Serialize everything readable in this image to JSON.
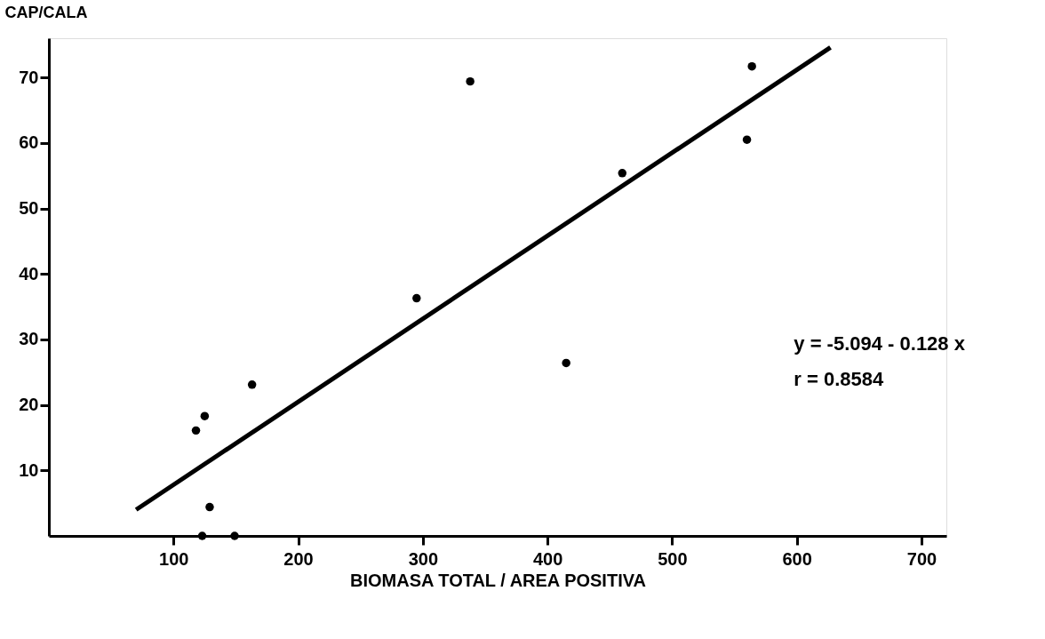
{
  "chart_data": {
    "type": "scatter",
    "xlabel": "BIOMASA TOTAL / AREA POSITIVA",
    "ylabel": "CAP/CALA",
    "series": [
      {
        "color": "#000000",
        "marker": "circle",
        "x": [
          118,
          125,
          163,
          129,
          123,
          149,
          295,
          338,
          415,
          460,
          560,
          564
        ],
        "values": [
          16.1,
          18.3,
          23.1,
          4.4,
          0,
          0,
          36.3,
          69.4,
          26.4,
          55.4,
          60.5,
          71.7
        ]
      },
      {
        "type": "line",
        "marker": "none",
        "color": "#000000",
        "x": [
          70,
          627
        ],
        "values": [
          4.0,
          74.6
        ]
      }
    ],
    "annotations": [
      "y = -5.094 - 0.128 x",
      "r = 0.8584"
    ],
    "xlim": [
      0,
      720
    ],
    "xticks": [
      100,
      200,
      300,
      400,
      500,
      600,
      700
    ],
    "ylim": [
      0,
      76
    ],
    "yticks": [
      10,
      20,
      30,
      40,
      50,
      60,
      70
    ],
    "grid": false,
    "line_style": "solid"
  }
}
